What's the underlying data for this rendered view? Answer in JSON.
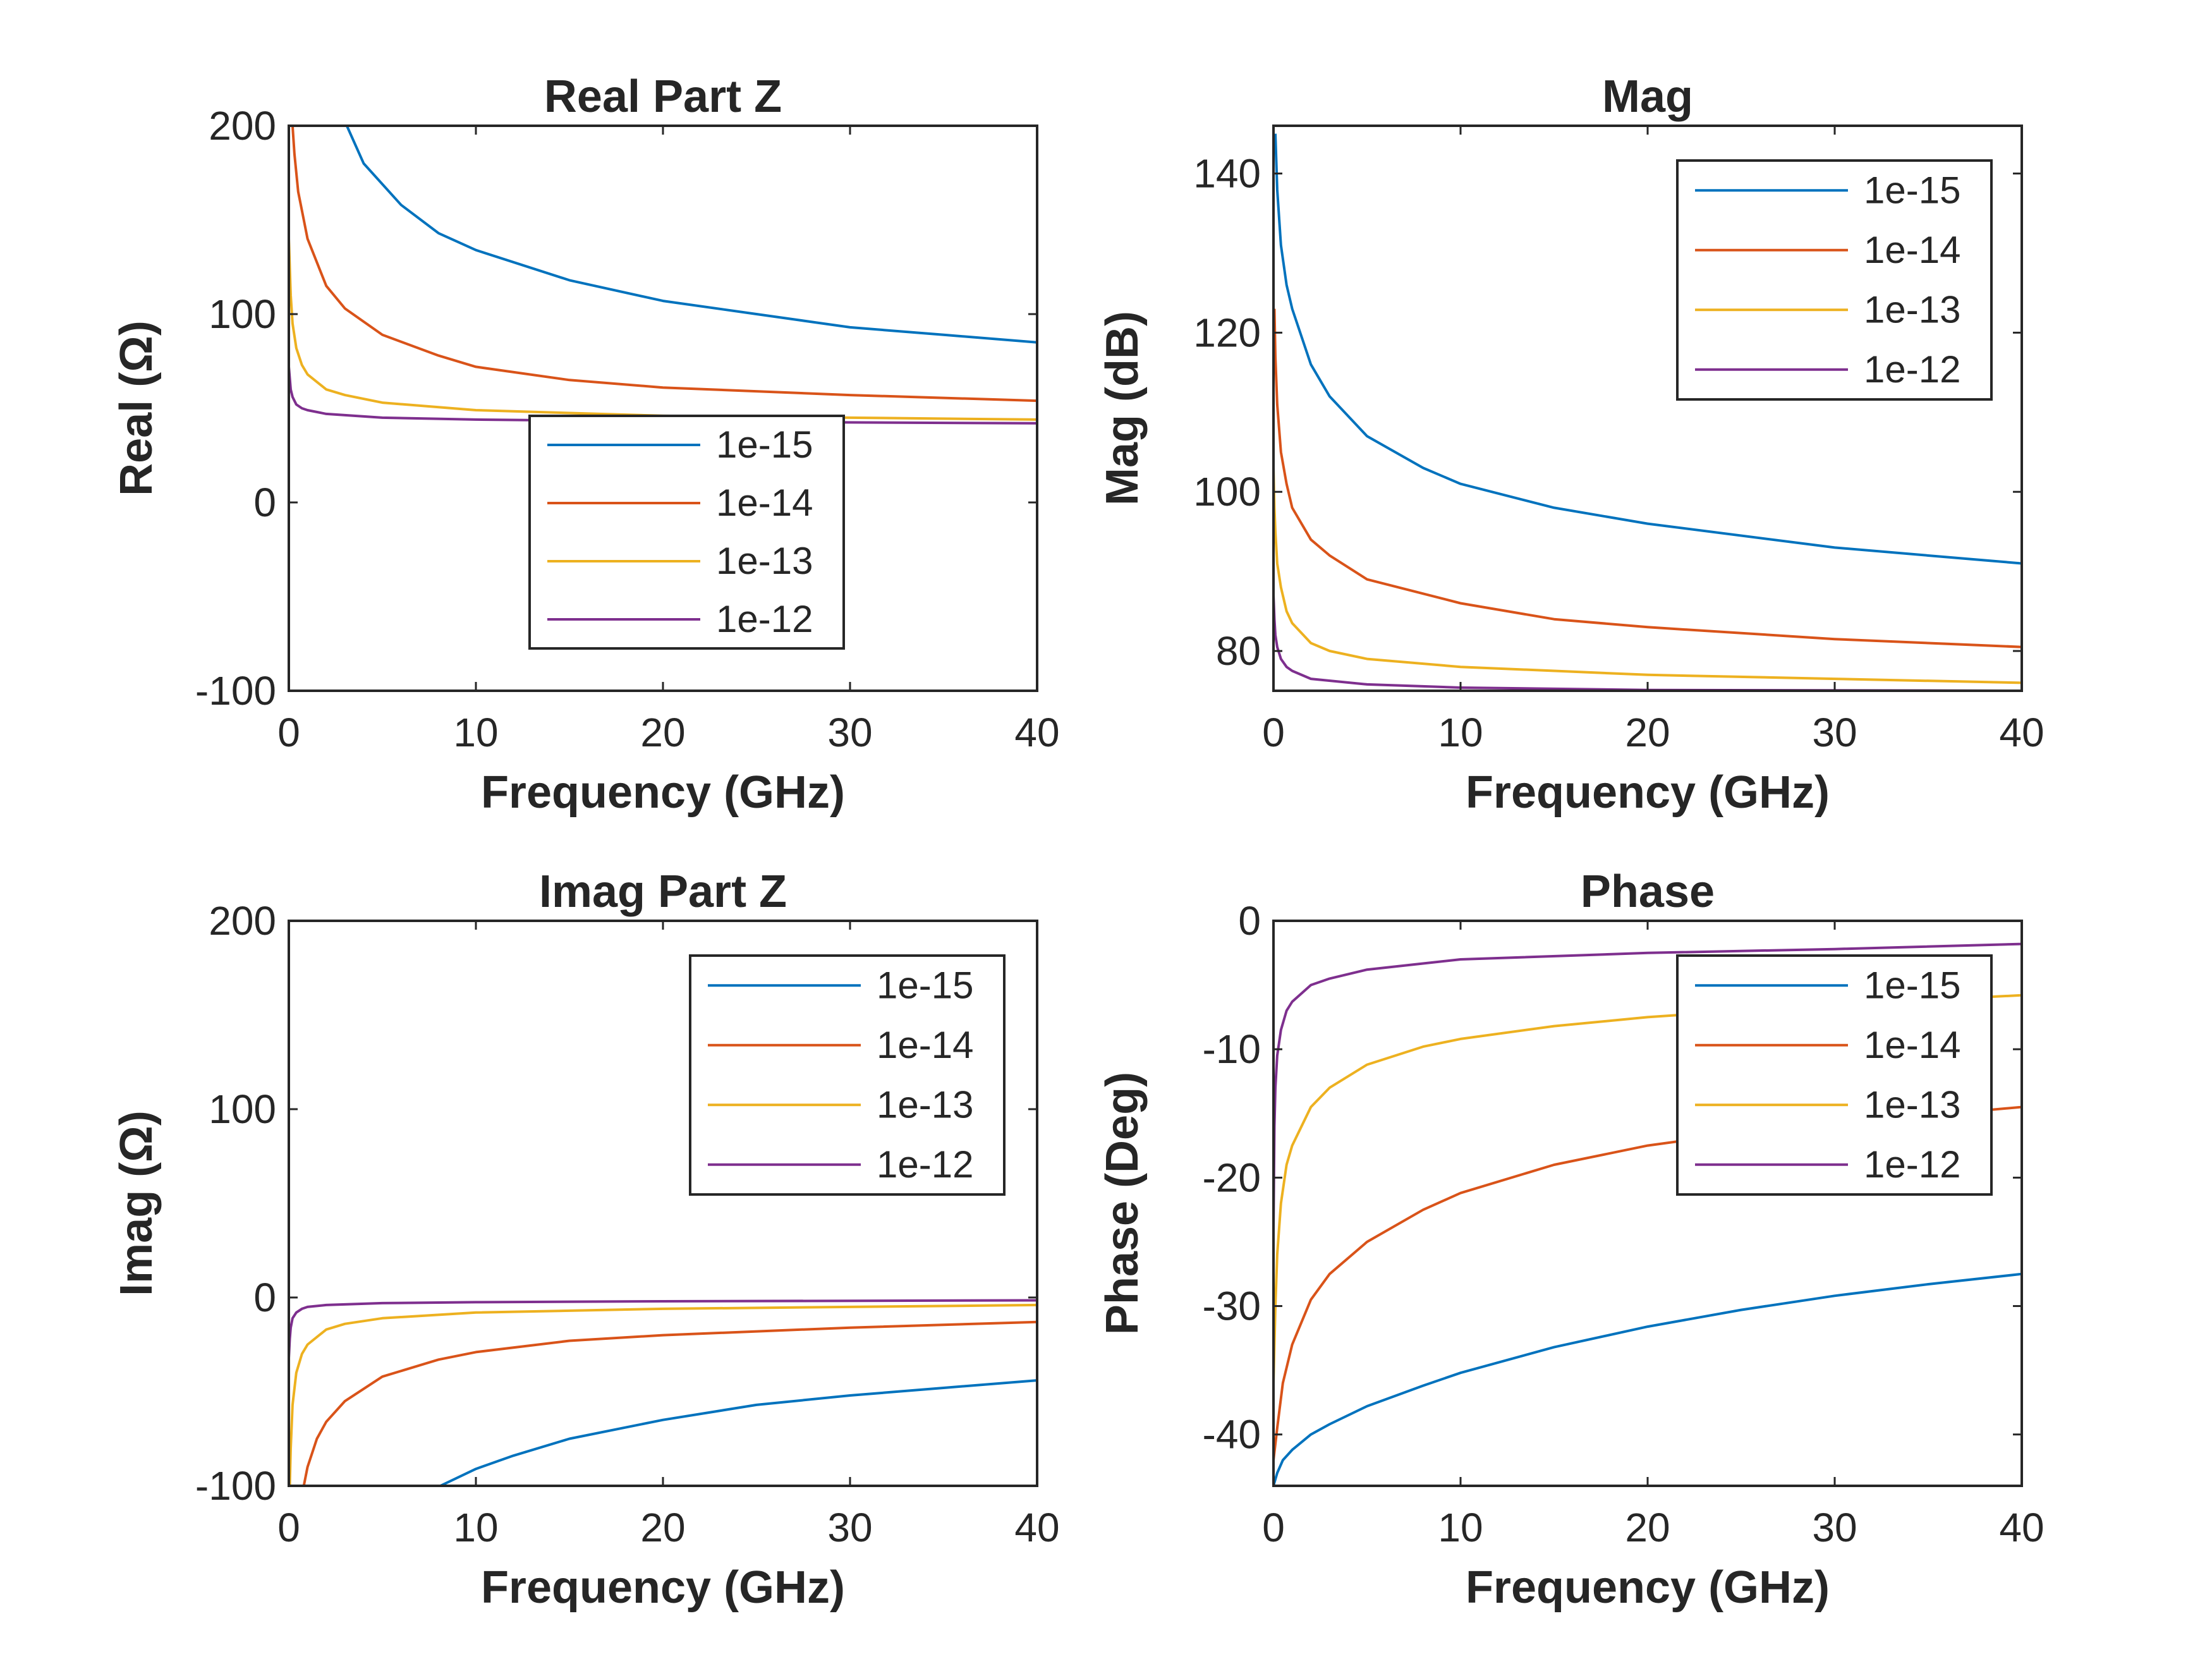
{
  "colors": {
    "axis": "#262626",
    "series": [
      "#0072BD",
      "#D95319",
      "#EDB120",
      "#7E2F8E"
    ]
  },
  "chart_data": [
    {
      "type": "line",
      "title": "Real Part Z",
      "xlabel": "Frequency (GHz)",
      "ylabel": "Real (Ω)",
      "xlim": [
        0,
        40
      ],
      "ylim": [
        -100,
        200
      ],
      "xticks": [
        0,
        10,
        20,
        30,
        40
      ],
      "yticks": [
        -100,
        0,
        100,
        200
      ],
      "legend_position": "center",
      "series": [
        {
          "name": "1e-15",
          "x": [
            3.1,
            4,
            6,
            8,
            10,
            15,
            20,
            25,
            30,
            35,
            40
          ],
          "y": [
            200,
            180,
            158,
            143,
            134,
            118,
            107,
            100,
            93,
            89,
            85
          ]
        },
        {
          "name": "1e-14",
          "x": [
            0.2,
            0.3,
            0.5,
            0.8,
            1,
            2,
            3,
            5,
            8,
            10,
            15,
            20,
            30,
            40
          ],
          "y": [
            200,
            185,
            165,
            150,
            140,
            115,
            103,
            89,
            78,
            72,
            65,
            61,
            57,
            54
          ]
        },
        {
          "name": "1e-13",
          "x": [
            0,
            0.05,
            0.1,
            0.2,
            0.4,
            0.7,
            1,
            2,
            3,
            5,
            10,
            20,
            30,
            40
          ],
          "y": [
            140,
            125,
            110,
            95,
            82,
            73,
            68,
            60,
            57,
            53,
            49,
            46,
            45,
            44
          ]
        },
        {
          "name": "1e-12",
          "x": [
            0,
            0.05,
            0.1,
            0.2,
            0.4,
            0.7,
            1,
            2,
            5,
            10,
            20,
            40
          ],
          "y": [
            72,
            66,
            60,
            56,
            52,
            50,
            49,
            47,
            45,
            44,
            43,
            42
          ]
        }
      ]
    },
    {
      "type": "line",
      "title": "Mag",
      "xlabel": "Frequency (GHz)",
      "ylabel": "Mag (dB)",
      "xlim": [
        0,
        40
      ],
      "ylim": [
        75,
        146
      ],
      "xticks": [
        0,
        10,
        20,
        30,
        40
      ],
      "yticks": [
        80,
        100,
        120,
        140
      ],
      "legend_position": "top-right",
      "series": [
        {
          "name": "1e-15",
          "x": [
            0.1,
            0.2,
            0.4,
            0.7,
            1,
            2,
            3,
            5,
            8,
            10,
            15,
            20,
            30,
            40
          ],
          "y": [
            145,
            138,
            131,
            126,
            123,
            116,
            112,
            107,
            103,
            101,
            98,
            96,
            93,
            91
          ]
        },
        {
          "name": "1e-14",
          "x": [
            0.05,
            0.1,
            0.2,
            0.4,
            0.7,
            1,
            2,
            3,
            5,
            10,
            15,
            20,
            30,
            40
          ],
          "y": [
            123,
            117,
            111,
            105,
            101,
            98,
            94,
            92,
            89,
            86,
            84,
            83,
            81.5,
            80.5
          ]
        },
        {
          "name": "1e-13",
          "x": [
            0,
            0.05,
            0.1,
            0.2,
            0.4,
            0.7,
            1,
            2,
            3,
            5,
            10,
            20,
            30,
            40
          ],
          "y": [
            103,
            98,
            95,
            91,
            88,
            85,
            83.5,
            81,
            80,
            79,
            78,
            77,
            76.5,
            76
          ]
        },
        {
          "name": "1e-12",
          "x": [
            0,
            0.05,
            0.1,
            0.2,
            0.4,
            0.7,
            1,
            2,
            5,
            10,
            20,
            40
          ],
          "y": [
            87,
            84,
            82,
            80.5,
            79,
            78,
            77.5,
            76.5,
            75.8,
            75.4,
            75.1,
            75
          ]
        }
      ]
    },
    {
      "type": "line",
      "title": "Imag Part Z",
      "xlabel": "Frequency (GHz)",
      "ylabel": "Imag (Ω)",
      "xlim": [
        0,
        40
      ],
      "ylim": [
        -100,
        200
      ],
      "xticks": [
        0,
        10,
        20,
        30,
        40
      ],
      "yticks": [
        -100,
        0,
        100,
        200
      ],
      "legend_position": "top-right",
      "series": [
        {
          "name": "1e-15",
          "x": [
            8.1,
            10,
            12,
            15,
            20,
            25,
            30,
            35,
            40
          ],
          "y": [
            -100,
            -91,
            -84,
            -75,
            -65,
            -57,
            -52,
            -48,
            -44
          ]
        },
        {
          "name": "1e-14",
          "x": [
            0.8,
            1,
            1.5,
            2,
            3,
            5,
            8,
            10,
            15,
            20,
            30,
            40
          ],
          "y": [
            -100,
            -90,
            -75,
            -66,
            -55,
            -42,
            -33,
            -29,
            -23,
            -20,
            -16,
            -13
          ]
        },
        {
          "name": "1e-13",
          "x": [
            0.05,
            0.1,
            0.2,
            0.4,
            0.7,
            1,
            2,
            3,
            5,
            10,
            20,
            30,
            40
          ],
          "y": [
            -100,
            -80,
            -57,
            -40,
            -30,
            -25,
            -17,
            -14,
            -11,
            -8,
            -6,
            -5,
            -4
          ]
        },
        {
          "name": "1e-12",
          "x": [
            0,
            0.05,
            0.1,
            0.2,
            0.4,
            0.7,
            1,
            2,
            5,
            10,
            20,
            40
          ],
          "y": [
            -32,
            -22,
            -16,
            -11,
            -8,
            -6,
            -5,
            -4,
            -3,
            -2.5,
            -2,
            -1.5
          ]
        }
      ]
    },
    {
      "type": "line",
      "title": "Phase",
      "xlabel": "Frequency (GHz)",
      "ylabel": "Phase (Deg)",
      "xlim": [
        0,
        40
      ],
      "ylim": [
        -44,
        0
      ],
      "xticks": [
        0,
        10,
        20,
        30,
        40
      ],
      "yticks": [
        -40,
        -30,
        -20,
        -10,
        0
      ],
      "legend_position": "top-right",
      "series": [
        {
          "name": "1e-15",
          "x": [
            0,
            0.2,
            0.5,
            1,
            2,
            3,
            5,
            8,
            10,
            15,
            20,
            25,
            30,
            35,
            40
          ],
          "y": [
            -44,
            -43,
            -42,
            -41.2,
            -40,
            -39.2,
            -37.8,
            -36.2,
            -35.2,
            -33.2,
            -31.6,
            -30.3,
            -29.2,
            -28.3,
            -27.5
          ]
        },
        {
          "name": "1e-14",
          "x": [
            0,
            0.2,
            0.5,
            1,
            2,
            3,
            5,
            8,
            10,
            15,
            20,
            25,
            30,
            40
          ],
          "y": [
            -42,
            -39.5,
            -36,
            -33,
            -29.5,
            -27.5,
            -25,
            -22.5,
            -21.2,
            -19,
            -17.5,
            -16.5,
            -15.8,
            -14.5
          ]
        },
        {
          "name": "1e-13",
          "x": [
            0,
            0.1,
            0.2,
            0.4,
            0.7,
            1,
            2,
            3,
            5,
            8,
            10,
            15,
            20,
            30,
            40
          ],
          "y": [
            -36,
            -30,
            -26,
            -22,
            -19,
            -17.5,
            -14.5,
            -13,
            -11.2,
            -9.8,
            -9.2,
            -8.2,
            -7.5,
            -6.5,
            -5.8
          ]
        },
        {
          "name": "1e-12",
          "x": [
            0,
            0.05,
            0.1,
            0.2,
            0.4,
            0.7,
            1,
            2,
            3,
            5,
            10,
            20,
            30,
            40
          ],
          "y": [
            -24,
            -16,
            -13,
            -10.5,
            -8.5,
            -7,
            -6.3,
            -5,
            -4.5,
            -3.8,
            -3,
            -2.5,
            -2.2,
            -1.8
          ]
        }
      ]
    }
  ]
}
